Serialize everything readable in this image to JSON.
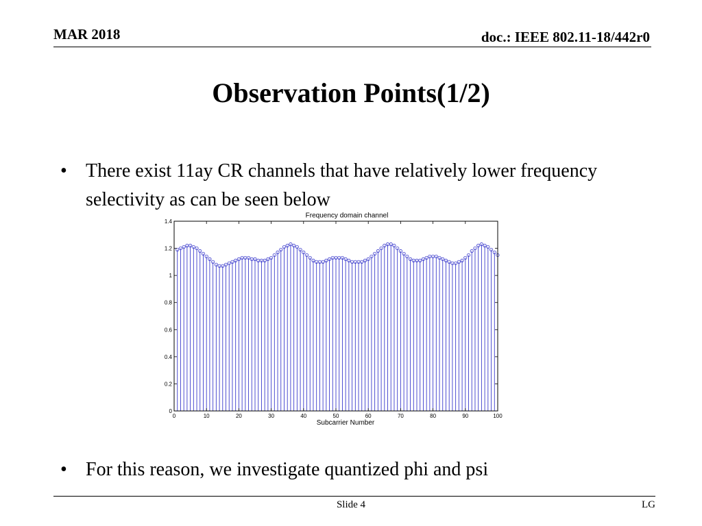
{
  "header": {
    "date": "MAR 2018",
    "doc": "doc.: IEEE 802.11-18/442r0"
  },
  "title": "Observation Points(1/2)",
  "bullets": [
    "There exist 11ay CR channels that have relatively lower frequency selectivity as can be seen below",
    "For this reason, we investigate quantized phi and psi"
  ],
  "footer": {
    "slide": "Slide 4",
    "org": "LG"
  },
  "chart_data": {
    "type": "stem",
    "title": "Frequency domain channel",
    "xlabel": "Subcarrier Number",
    "ylabel": "",
    "xlim": [
      0,
      100
    ],
    "ylim": [
      0,
      1.4
    ],
    "xticks": [
      0,
      10,
      20,
      30,
      40,
      50,
      60,
      70,
      80,
      90,
      100
    ],
    "yticks": [
      0,
      0.2,
      0.4,
      0.6,
      0.8,
      1,
      1.2,
      1.4
    ],
    "grid": false,
    "color": "#3a3acc",
    "x": [
      1,
      2,
      3,
      4,
      5,
      6,
      7,
      8,
      9,
      10,
      11,
      12,
      13,
      14,
      15,
      16,
      17,
      18,
      19,
      20,
      21,
      22,
      23,
      24,
      25,
      26,
      27,
      28,
      29,
      30,
      31,
      32,
      33,
      34,
      35,
      36,
      37,
      38,
      39,
      40,
      41,
      42,
      43,
      44,
      45,
      46,
      47,
      48,
      49,
      50,
      51,
      52,
      53,
      54,
      55,
      56,
      57,
      58,
      59,
      60,
      61,
      62,
      63,
      64,
      65,
      66,
      67,
      68,
      69,
      70,
      71,
      72,
      73,
      74,
      75,
      76,
      77,
      78,
      79,
      80,
      81,
      82,
      83,
      84,
      85,
      86,
      87,
      88,
      89,
      90,
      91,
      92,
      93,
      94,
      95,
      96,
      97,
      98,
      99,
      100
    ],
    "y": [
      1.19,
      1.2,
      1.21,
      1.22,
      1.22,
      1.21,
      1.2,
      1.18,
      1.16,
      1.14,
      1.12,
      1.1,
      1.08,
      1.07,
      1.07,
      1.08,
      1.09,
      1.1,
      1.11,
      1.12,
      1.13,
      1.13,
      1.13,
      1.12,
      1.12,
      1.11,
      1.11,
      1.11,
      1.12,
      1.13,
      1.15,
      1.17,
      1.19,
      1.21,
      1.22,
      1.23,
      1.22,
      1.21,
      1.19,
      1.17,
      1.15,
      1.13,
      1.11,
      1.1,
      1.1,
      1.1,
      1.11,
      1.12,
      1.13,
      1.13,
      1.13,
      1.13,
      1.12,
      1.11,
      1.1,
      1.1,
      1.1,
      1.1,
      1.11,
      1.12,
      1.14,
      1.16,
      1.18,
      1.2,
      1.22,
      1.23,
      1.23,
      1.22,
      1.2,
      1.18,
      1.16,
      1.14,
      1.12,
      1.11,
      1.11,
      1.11,
      1.12,
      1.13,
      1.14,
      1.14,
      1.14,
      1.13,
      1.12,
      1.11,
      1.1,
      1.09,
      1.09,
      1.1,
      1.11,
      1.13,
      1.15,
      1.18,
      1.2,
      1.22,
      1.23,
      1.22,
      1.21,
      1.19,
      1.17,
      1.15
    ]
  }
}
